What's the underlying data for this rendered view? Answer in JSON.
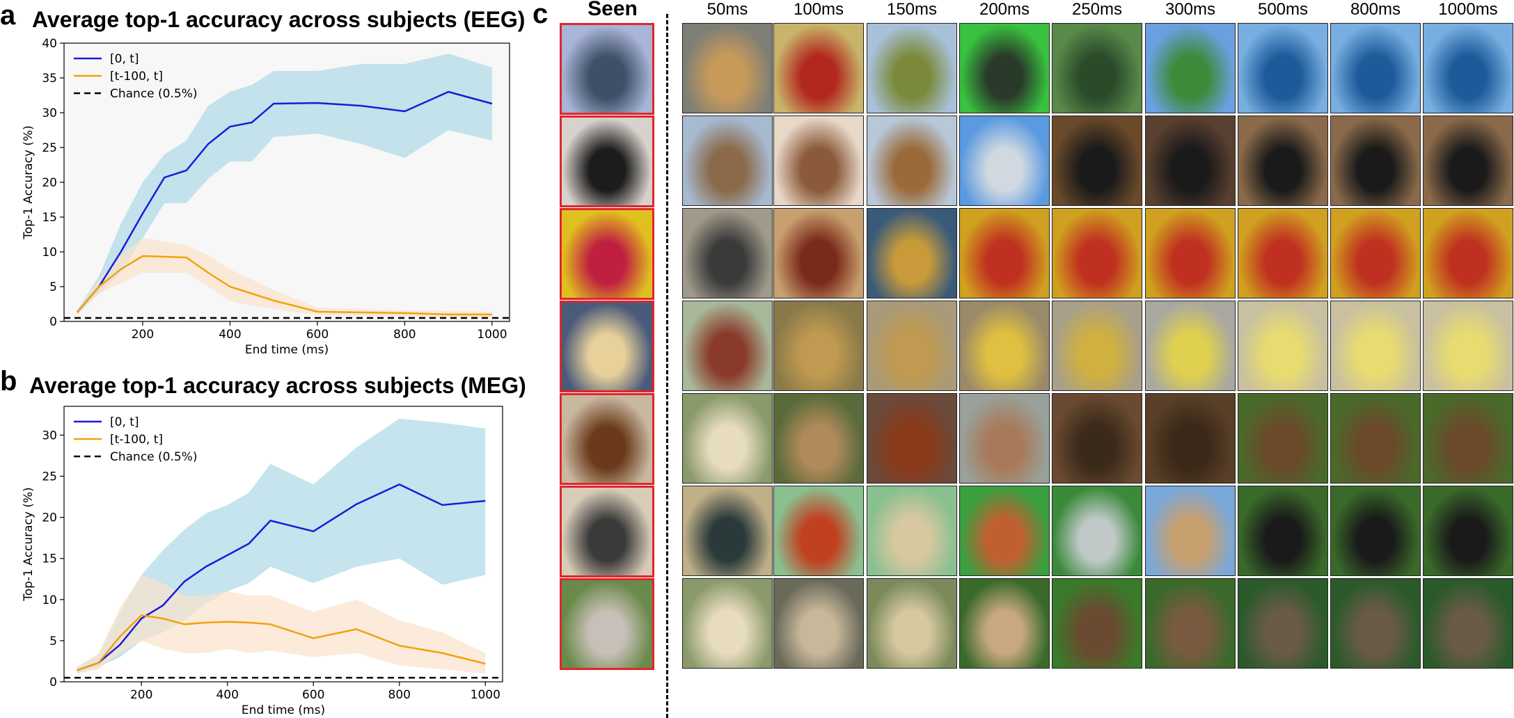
{
  "panels": {
    "a": "a",
    "b": "b",
    "c": "c"
  },
  "chart_data": [
    {
      "type": "line",
      "title": "Average top-1 accuracy across subjects (EEG)",
      "xlabel": "End time (ms)",
      "ylabel": "Top-1 Accuracy (%)",
      "xlim": [
        20,
        1040
      ],
      "ylim": [
        0,
        40
      ],
      "xticks": [
        200,
        400,
        600,
        800,
        1000
      ],
      "yticks": [
        0,
        5,
        10,
        15,
        20,
        25,
        30,
        35,
        40
      ],
      "legend_position": "top-left",
      "grid": false,
      "background": "#f7f7f7",
      "series": [
        {
          "name": "[0, t]",
          "color": "#1a1adb",
          "band_color": "#add8e6",
          "x": [
            50,
            100,
            150,
            200,
            250,
            300,
            350,
            400,
            450,
            500,
            600,
            700,
            800,
            900,
            1000
          ],
          "values": [
            1.3,
            5.0,
            10.0,
            15.5,
            20.7,
            21.7,
            25.5,
            28.0,
            28.6,
            31.3,
            31.4,
            31.0,
            30.2,
            33.0,
            31.3
          ],
          "upper": [
            1.6,
            6.5,
            14.0,
            20.0,
            24.0,
            26.0,
            31.0,
            33.0,
            34.0,
            36.0,
            36.0,
            37.0,
            37.0,
            38.5,
            36.5
          ],
          "lower": [
            1.0,
            4.0,
            7.0,
            12.0,
            17.0,
            17.0,
            20.5,
            23.0,
            23.0,
            26.5,
            27.0,
            25.5,
            23.5,
            27.5,
            26.0
          ]
        },
        {
          "name": "[t-100, t]",
          "color": "#f0a30a",
          "band_color": "#fbe3cc",
          "x": [
            50,
            100,
            150,
            200,
            250,
            300,
            350,
            400,
            450,
            500,
            600,
            700,
            800,
            900,
            1000
          ],
          "values": [
            1.3,
            5.0,
            7.5,
            9.4,
            9.3,
            9.2,
            7.0,
            5.0,
            4.0,
            3.0,
            1.4,
            1.3,
            1.2,
            1.0,
            1.0
          ],
          "upper": [
            1.6,
            6.0,
            9.5,
            12.0,
            11.5,
            11.0,
            9.5,
            7.5,
            6.0,
            4.5,
            2.0,
            1.8,
            1.6,
            1.5,
            1.4
          ],
          "lower": [
            1.0,
            4.0,
            5.5,
            7.0,
            7.0,
            7.0,
            5.0,
            3.0,
            2.2,
            1.8,
            0.9,
            0.8,
            0.7,
            0.6,
            0.6
          ]
        },
        {
          "name": "Chance (0.5%)",
          "color": "#000000",
          "dashed": true,
          "x": [
            20,
            1040
          ],
          "values": [
            0.5,
            0.5
          ]
        }
      ]
    },
    {
      "type": "line",
      "title": "Average top-1 accuracy across subjects (MEG)",
      "xlabel": "End time (ms)",
      "ylabel": "Top-1 Accuracy (%)",
      "xlim": [
        20,
        1040
      ],
      "ylim": [
        0,
        33.5
      ],
      "xticks": [
        200,
        400,
        600,
        800,
        1000
      ],
      "yticks": [
        0,
        5,
        10,
        15,
        20,
        25,
        30
      ],
      "legend_position": "top-left",
      "grid": false,
      "background": "#ffffff",
      "series": [
        {
          "name": "[0, t]",
          "color": "#1a1adb",
          "band_color": "#add8e6",
          "x": [
            50,
            100,
            150,
            200,
            250,
            300,
            350,
            400,
            450,
            500,
            600,
            700,
            800,
            900,
            1000
          ],
          "values": [
            1.4,
            2.3,
            4.5,
            7.7,
            9.3,
            12.2,
            14.0,
            15.4,
            16.8,
            19.6,
            18.3,
            21.6,
            24.0,
            21.5,
            22.0
          ],
          "upper": [
            1.8,
            3.2,
            8.5,
            13.0,
            16.0,
            18.5,
            20.5,
            21.5,
            23.0,
            26.5,
            24.0,
            28.5,
            32.0,
            31.5,
            30.8
          ],
          "lower": [
            1.0,
            1.8,
            3.0,
            5.0,
            6.0,
            7.5,
            9.5,
            11.0,
            12.0,
            14.0,
            12.0,
            14.0,
            15.0,
            11.8,
            13.0
          ]
        },
        {
          "name": "[t-100, t]",
          "color": "#f0a30a",
          "band_color": "#fbe3cc",
          "x": [
            50,
            100,
            150,
            200,
            250,
            300,
            350,
            400,
            450,
            500,
            600,
            700,
            800,
            900,
            1000
          ],
          "values": [
            1.4,
            2.3,
            5.5,
            8.1,
            7.7,
            7.0,
            7.2,
            7.3,
            7.2,
            7.0,
            5.3,
            6.4,
            4.4,
            3.5,
            2.2
          ],
          "upper": [
            1.8,
            3.5,
            9.0,
            13.0,
            12.0,
            10.5,
            10.5,
            11.0,
            10.5,
            10.5,
            8.5,
            10.0,
            7.5,
            6.0,
            3.5
          ],
          "lower": [
            1.0,
            1.5,
            3.5,
            5.0,
            4.0,
            3.5,
            3.5,
            4.0,
            3.5,
            3.8,
            3.0,
            3.5,
            2.0,
            1.5,
            1.0
          ]
        },
        {
          "name": "Chance (0.5%)",
          "color": "#000000",
          "dashed": true,
          "x": [
            20,
            1040
          ],
          "values": [
            0.5,
            0.5
          ]
        }
      ]
    }
  ],
  "grid": {
    "seen_header": "Seen",
    "columns": [
      "50ms",
      "100ms",
      "150ms",
      "200ms",
      "250ms",
      "300ms",
      "500ms",
      "800ms",
      "1000ms"
    ],
    "rows": [
      {
        "seen": {
          "icon": "aircraft-carrier",
          "colors": [
            "#a8b4d8",
            "#3e4f66"
          ]
        },
        "cells": [
          {
            "icon": "wooden-bench",
            "colors": [
              "#7f7f75",
              "#c89a5a"
            ]
          },
          {
            "icon": "roulette-wheel",
            "colors": [
              "#c8b46a",
              "#b2281e"
            ]
          },
          {
            "icon": "salad-bowl",
            "colors": [
              "#a8c0d8",
              "#7a8a3a"
            ]
          },
          {
            "icon": "green-model-train",
            "colors": [
              "#39c23f",
              "#2a3a2a"
            ]
          },
          {
            "icon": "steam-train",
            "colors": [
              "#5a8a4a",
              "#2a4a2a"
            ]
          },
          {
            "icon": "white-fence",
            "colors": [
              "#6aa0e0",
              "#3e8a3a"
            ]
          },
          {
            "icon": "ferry-boat",
            "colors": [
              "#78aee0",
              "#1c5a9a"
            ]
          },
          {
            "icon": "ferry-boat",
            "colors": [
              "#78aee0",
              "#1c5a9a"
            ]
          },
          {
            "icon": "ferry-boat",
            "colors": [
              "#78aee0",
              "#1c5a9a"
            ]
          }
        ]
      },
      {
        "seen": {
          "icon": "black-router",
          "colors": [
            "#d8d2cc",
            "#1c1c1c"
          ]
        },
        "cells": [
          {
            "icon": "trailer-cabin",
            "colors": [
              "#a7bad0",
              "#8a6a4a"
            ]
          },
          {
            "icon": "hand-cup",
            "colors": [
              "#e8d8c8",
              "#8a5a3a"
            ]
          },
          {
            "icon": "wooden-shed",
            "colors": [
              "#b8c8d8",
              "#9a6a3a"
            ]
          },
          {
            "icon": "airplane",
            "colors": [
              "#5a9ae0",
              "#d0d8e0"
            ]
          },
          {
            "icon": "black-cabinet",
            "colors": [
              "#6a4a2a",
              "#1a1a1a"
            ]
          },
          {
            "icon": "black-cabinet",
            "colors": [
              "#5a4030",
              "#1a1a1a"
            ]
          },
          {
            "icon": "black-router",
            "colors": [
              "#8a6a4a",
              "#1a1a1a"
            ]
          },
          {
            "icon": "black-router",
            "colors": [
              "#8a6a4a",
              "#1a1a1a"
            ]
          },
          {
            "icon": "black-router",
            "colors": [
              "#8a6a4a",
              "#1a1a1a"
            ]
          }
        ]
      },
      {
        "seen": {
          "icon": "jelly-beans",
          "colors": [
            "#e0c020",
            "#c02040"
          ]
        },
        "cells": [
          {
            "icon": "metal-gear",
            "colors": [
              "#a09a8a",
              "#3a3a3a"
            ]
          },
          {
            "icon": "carousel",
            "colors": [
              "#c8a070",
              "#7a2a1a"
            ]
          },
          {
            "icon": "carousel",
            "colors": [
              "#3a5a7a",
              "#c89a3a"
            ]
          },
          {
            "icon": "candies",
            "colors": [
              "#d0a020",
              "#c03020"
            ]
          },
          {
            "icon": "candies",
            "colors": [
              "#d0a020",
              "#c03020"
            ]
          },
          {
            "icon": "candies",
            "colors": [
              "#d0a020",
              "#c03020"
            ]
          },
          {
            "icon": "candies",
            "colors": [
              "#d0a020",
              "#c03020"
            ]
          },
          {
            "icon": "candies",
            "colors": [
              "#d0a020",
              "#c03020"
            ]
          },
          {
            "icon": "candies",
            "colors": [
              "#d0a020",
              "#c03020"
            ]
          }
        ]
      },
      {
        "seen": {
          "icon": "whisked-batter",
          "colors": [
            "#4a5a7a",
            "#e8d09a"
          ]
        },
        "cells": [
          {
            "icon": "cufflinks",
            "colors": [
              "#a8b89a",
              "#8a3a2a"
            ]
          },
          {
            "icon": "soup-bowl",
            "colors": [
              "#8a7a4a",
              "#c09a50"
            ]
          },
          {
            "icon": "sauce-cups",
            "colors": [
              "#a89a7a",
              "#c09a50"
            ]
          },
          {
            "icon": "metal-basket",
            "colors": [
              "#9a8a6a",
              "#e0c040"
            ]
          },
          {
            "icon": "blender-cup",
            "colors": [
              "#a8a08a",
              "#d0b040"
            ]
          },
          {
            "icon": "soup-tureen",
            "colors": [
              "#a8a8a0",
              "#e0d050"
            ]
          },
          {
            "icon": "pudding-bowl",
            "colors": [
              "#c8c0a0",
              "#e8dc70"
            ]
          },
          {
            "icon": "pudding-bowl",
            "colors": [
              "#c8c0a0",
              "#e8dc70"
            ]
          },
          {
            "icon": "pudding-bowl",
            "colors": [
              "#c8c0a0",
              "#e8dc70"
            ]
          }
        ]
      },
      {
        "seen": {
          "icon": "beaver",
          "colors": [
            "#c8b8a0",
            "#6a3a1a"
          ]
        },
        "cells": [
          {
            "icon": "cream-soup",
            "colors": [
              "#8a9a6a",
              "#e8dcc0"
            ]
          },
          {
            "icon": "stew-plate",
            "colors": [
              "#5a6a3a",
              "#b08a5a"
            ]
          },
          {
            "icon": "meatballs",
            "colors": [
              "#6a4a3a",
              "#8a3a1a"
            ]
          },
          {
            "icon": "portrait-man",
            "colors": [
              "#9aa09a",
              "#a87a5a"
            ]
          },
          {
            "icon": "furry-pig",
            "colors": [
              "#6a4a30",
              "#3a2a1a"
            ]
          },
          {
            "icon": "furry-creature",
            "colors": [
              "#5a4028",
              "#3a2818"
            ]
          },
          {
            "icon": "groundhog",
            "colors": [
              "#4a6a2a",
              "#6a4a2a"
            ]
          },
          {
            "icon": "groundhog",
            "colors": [
              "#4a6a2a",
              "#6a4a2a"
            ]
          },
          {
            "icon": "groundhog",
            "colors": [
              "#4a6a2a",
              "#6a4a2a"
            ]
          }
        ]
      },
      {
        "seen": {
          "icon": "seagull",
          "colors": [
            "#d8ccb8",
            "#3a3a3a"
          ]
        },
        "cells": [
          {
            "icon": "dartboard",
            "colors": [
              "#c0b088",
              "#2a3a3a"
            ]
          },
          {
            "icon": "green-platter",
            "colors": [
              "#8ac090",
              "#c04020"
            ]
          },
          {
            "icon": "green-platter",
            "colors": [
              "#8ac090",
              "#d8c8a0"
            ]
          },
          {
            "icon": "sports-field",
            "colors": [
              "#3aa040",
              "#c06030"
            ]
          },
          {
            "icon": "shield-sign",
            "colors": [
              "#3a8a3a",
              "#c0c8c8"
            ]
          },
          {
            "icon": "horse",
            "colors": [
              "#7aa8d8",
              "#c8a070"
            ]
          },
          {
            "icon": "toucan",
            "colors": [
              "#3a6a2a",
              "#1a1a1a"
            ]
          },
          {
            "icon": "toucan",
            "colors": [
              "#3a6a2a",
              "#1a1a1a"
            ]
          },
          {
            "icon": "toucan",
            "colors": [
              "#3a6a2a",
              "#1a1a1a"
            ]
          }
        ]
      },
      {
        "seen": {
          "icon": "opossum",
          "colors": [
            "#6a8a4a",
            "#c8c0b8"
          ]
        },
        "cells": [
          {
            "icon": "cream-soup",
            "colors": [
              "#8a9a6a",
              "#e8dcc0"
            ]
          },
          {
            "icon": "cream-soup",
            "colors": [
              "#6a6a5a",
              "#c8b89a"
            ]
          },
          {
            "icon": "bread-plate",
            "colors": [
              "#7a8a5a",
              "#d8c8a0"
            ]
          },
          {
            "icon": "puppy",
            "colors": [
              "#3a6a2a",
              "#c8a880"
            ]
          },
          {
            "icon": "furry-creature",
            "colors": [
              "#3a7a2a",
              "#6a4a30"
            ]
          },
          {
            "icon": "wild-boar",
            "colors": [
              "#3a6a2a",
              "#7a5a40"
            ]
          },
          {
            "icon": "raccoon",
            "colors": [
              "#2a5a2a",
              "#6a5a48"
            ]
          },
          {
            "icon": "raccoon",
            "colors": [
              "#2a5a2a",
              "#6a5a48"
            ]
          },
          {
            "icon": "raccoon",
            "colors": [
              "#2a5a2a",
              "#6a5a48"
            ]
          }
        ]
      }
    ]
  }
}
